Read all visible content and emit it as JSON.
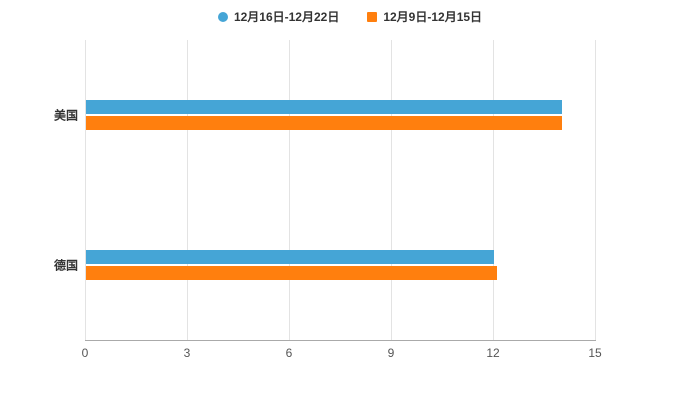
{
  "chart_data": {
    "type": "bar",
    "orientation": "horizontal",
    "title": "",
    "categories": [
      "美国",
      "德国"
    ],
    "series": [
      {
        "name": "12月16日-12月22日",
        "color": "#45a5d6",
        "marker": "circle",
        "values": [
          14,
          12
        ]
      },
      {
        "name": "12月9日-12月15日",
        "color": "#ff7f0e",
        "marker": "square",
        "values": [
          14,
          12.1
        ]
      }
    ],
    "xlim": [
      0,
      15
    ],
    "xticks": [
      0,
      3,
      6,
      9,
      12,
      15
    ],
    "grid": true,
    "legend_position": "top",
    "background": "#ffffff",
    "gridline_color": "#e3e3e3",
    "axis_color": "#aaaaaa",
    "label_color": "#333333",
    "tick_color": "#555555"
  }
}
